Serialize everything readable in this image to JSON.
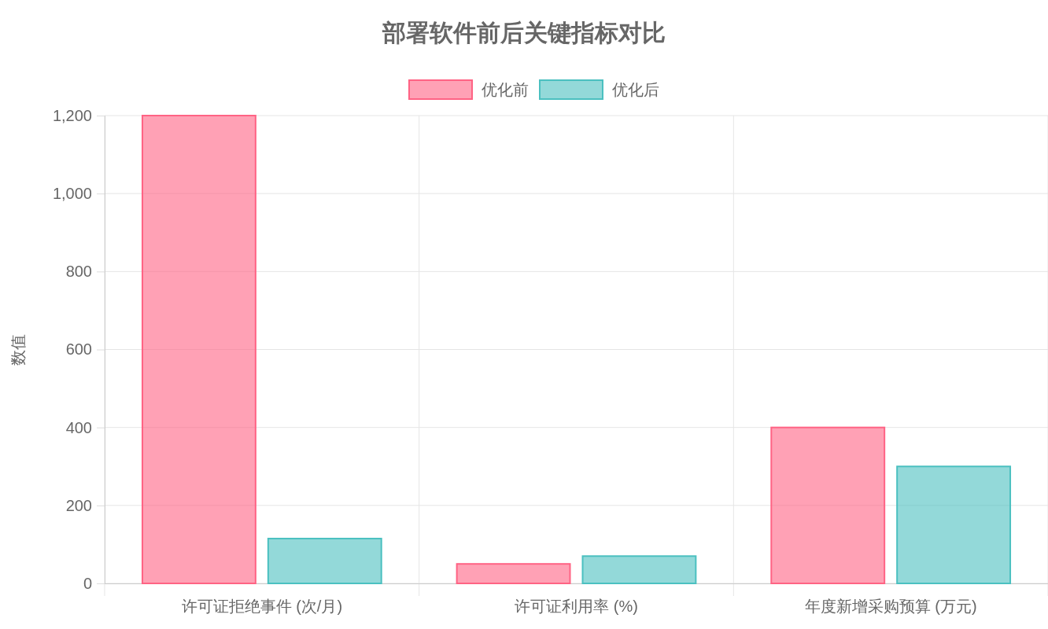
{
  "chart_data": {
    "type": "bar",
    "title": "部署软件前后关键指标对比",
    "ylabel": "数值",
    "categories": [
      "许可证拒绝事件 (次/月)",
      "许可证利用率 (%)",
      "年度新增采购预算 (万元)"
    ],
    "series": [
      {
        "name": "优化前",
        "color": "#ff6384",
        "values": [
          1200,
          50,
          400
        ]
      },
      {
        "name": "优化后",
        "color": "#4bc0c0",
        "values": [
          115,
          70,
          300
        ]
      }
    ],
    "ylim": [
      0,
      1200
    ],
    "yticks": [
      0,
      200,
      400,
      600,
      800,
      {
        "value": 1000,
        "label": "1,000"
      },
      {
        "value": 1200,
        "label": "1,200"
      }
    ],
    "grid": true,
    "legend": "top"
  }
}
